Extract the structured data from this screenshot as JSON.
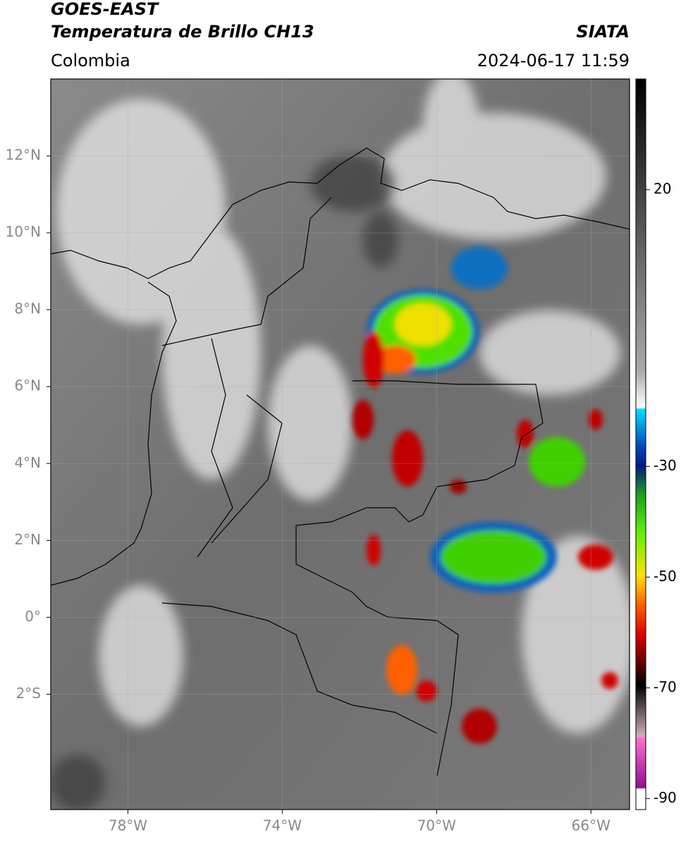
{
  "header": {
    "title": "GOES-EAST",
    "subtitle": "Temperatura de Brillo CH13",
    "region": "Colombia",
    "source": "SIATA",
    "datetime": "2024-06-17 11:59"
  },
  "map": {
    "xlim": [
      -80,
      -65
    ],
    "ylim": [
      -5,
      14
    ],
    "grid": true,
    "xticks": [
      {
        "value": -78,
        "label": "78°W"
      },
      {
        "value": -74,
        "label": "74°W"
      },
      {
        "value": -70,
        "label": "70°W"
      },
      {
        "value": -66,
        "label": "66°W"
      }
    ],
    "yticks": [
      {
        "value": 12,
        "label": "12°N"
      },
      {
        "value": 10,
        "label": "10°N"
      },
      {
        "value": 8,
        "label": "8°N"
      },
      {
        "value": 6,
        "label": "6°N"
      },
      {
        "value": 4,
        "label": "4°N"
      },
      {
        "value": 2,
        "label": "2°N"
      },
      {
        "value": 0,
        "label": "0°"
      },
      {
        "value": -2,
        "label": "2°S"
      }
    ]
  },
  "colorbar": {
    "lim": [
      -92,
      40
    ],
    "ticks": [
      20,
      -30,
      -50,
      -70,
      -90
    ]
  }
}
